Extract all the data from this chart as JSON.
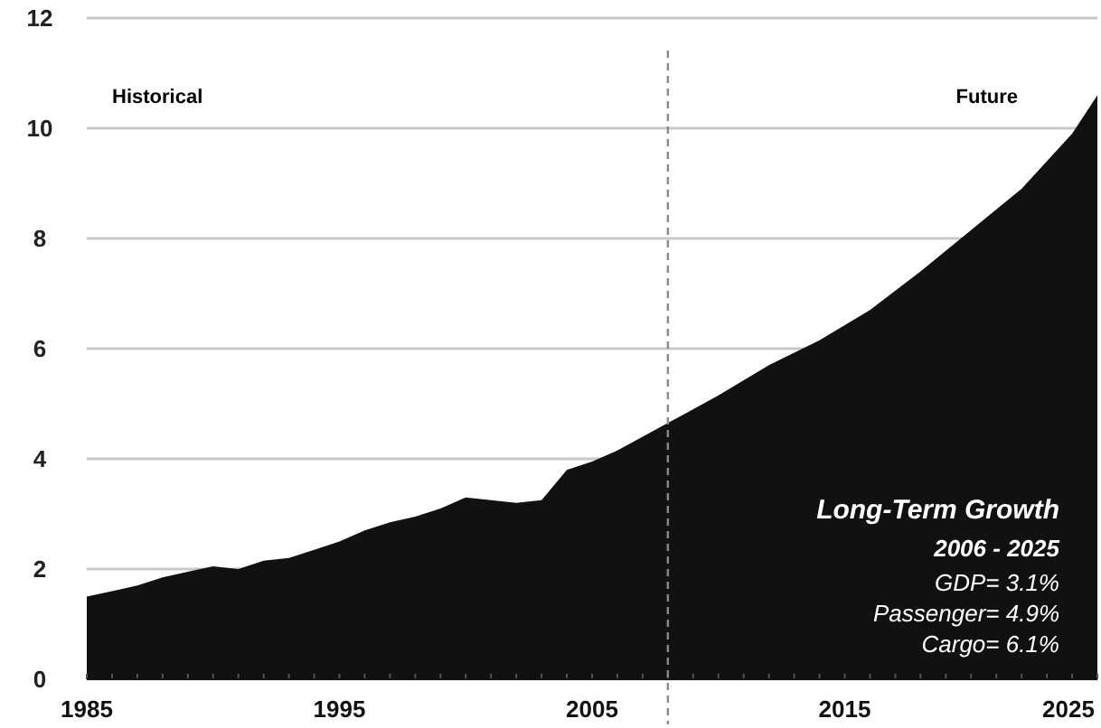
{
  "chart_data": {
    "type": "area",
    "x": [
      1985,
      1986,
      1987,
      1988,
      1989,
      1990,
      1991,
      1992,
      1993,
      1994,
      1995,
      1996,
      1997,
      1998,
      1999,
      2000,
      2001,
      2002,
      2003,
      2004,
      2005,
      2006,
      2008,
      2010,
      2012,
      2014,
      2016,
      2018,
      2020,
      2022,
      2024,
      2025
    ],
    "values": [
      1.5,
      1.6,
      1.7,
      1.85,
      1.95,
      2.05,
      2.0,
      2.15,
      2.2,
      2.35,
      2.5,
      2.7,
      2.85,
      2.95,
      3.1,
      3.3,
      3.25,
      3.2,
      3.25,
      3.8,
      3.95,
      4.15,
      4.65,
      5.15,
      5.7,
      6.15,
      6.7,
      7.4,
      8.15,
      8.9,
      9.9,
      10.6
    ],
    "color": "#111111",
    "xlim": [
      1985,
      2025
    ],
    "xticks": [
      1985,
      1995,
      2005,
      2015,
      2025
    ],
    "ylim": [
      0,
      12
    ],
    "yticks": [
      0,
      2,
      4,
      6,
      8,
      10,
      12
    ],
    "grid": "y",
    "ref_lines": [
      {
        "axis": "x",
        "value": 2008,
        "color": "#888888",
        "line_style": "dashed"
      }
    ],
    "annotations": [
      "Historical",
      "Future",
      "Long-Term Growth",
      "2006 - 2025",
      "GDP= 3.1%",
      "Passenger= 4.9%",
      "Cargo= 6.1%"
    ]
  }
}
